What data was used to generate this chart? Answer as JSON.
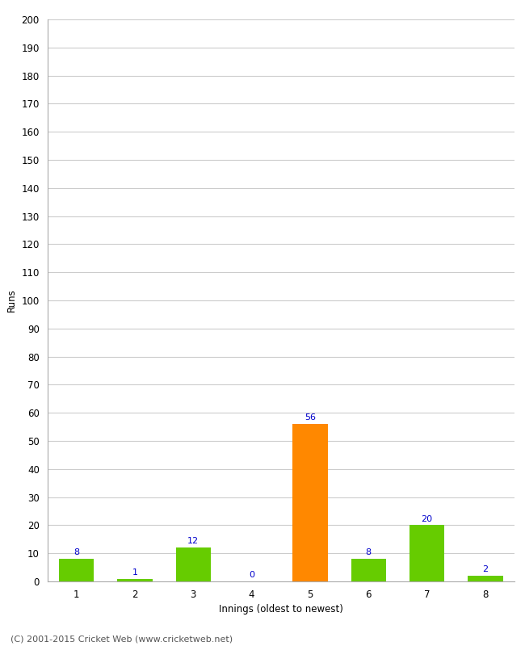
{
  "innings": [
    1,
    2,
    3,
    4,
    5,
    6,
    7,
    8
  ],
  "values": [
    8,
    1,
    12,
    0,
    56,
    8,
    20,
    2
  ],
  "bar_colors": [
    "#66cc00",
    "#66cc00",
    "#66cc00",
    "#66cc00",
    "#ff8800",
    "#66cc00",
    "#66cc00",
    "#66cc00"
  ],
  "label_color": "#0000cc",
  "ylabel": "Runs",
  "xlabel": "Innings (oldest to newest)",
  "ylim": [
    0,
    200
  ],
  "yticks": [
    0,
    10,
    20,
    30,
    40,
    50,
    60,
    70,
    80,
    90,
    100,
    110,
    120,
    130,
    140,
    150,
    160,
    170,
    180,
    190,
    200
  ],
  "footer": "(C) 2001-2015 Cricket Web (www.cricketweb.net)",
  "background_color": "#ffffff",
  "grid_color": "#cccccc",
  "label_fontsize": 8,
  "axis_fontsize": 8.5,
  "footer_fontsize": 8
}
